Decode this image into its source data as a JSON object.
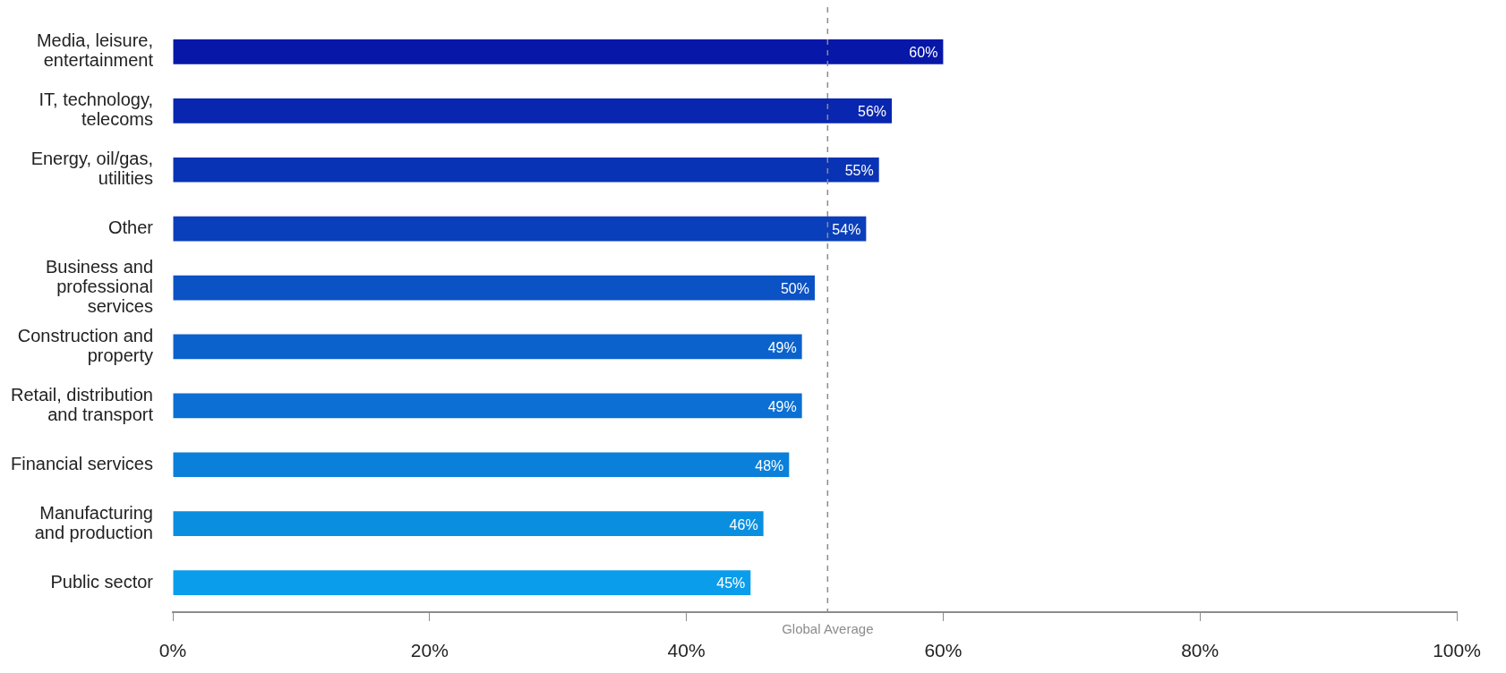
{
  "chart_data": {
    "type": "bar",
    "orientation": "horizontal",
    "categories": [
      "Media, leisure, entertainment",
      "IT, technology, telecoms",
      "Energy, oil/gas, utilities",
      "Other",
      "Business and professional services",
      "Construction and property",
      "Retail, distribution and transport",
      "Financial services",
      "Manufacturing and production",
      "Public sector"
    ],
    "values": [
      60,
      56,
      55,
      54,
      50,
      49,
      49,
      48,
      46,
      45
    ],
    "value_labels": [
      "60%",
      "56%",
      "55%",
      "54%",
      "50%",
      "49%",
      "49%",
      "48%",
      "46%",
      "45%"
    ],
    "colors": [
      "#0717a8",
      "#0826b0",
      "#0933b5",
      "#0a3fbb",
      "#0b52c4",
      "#0b62cc",
      "#0b6fd3",
      "#0a80da",
      "#0a8fe0",
      "#0a9deb"
    ],
    "xlim": [
      0,
      100
    ],
    "xticks": [
      {
        "value": 0,
        "label": "0%"
      },
      {
        "value": 20,
        "label": "20%"
      },
      {
        "value": 40,
        "label": "40%"
      },
      {
        "value": 60,
        "label": "60%"
      },
      {
        "value": 80,
        "label": "80%"
      },
      {
        "value": 100,
        "label": "100%"
      }
    ],
    "ref_lines": [
      {
        "axis": "x",
        "value": 51,
        "label": "Global Average",
        "color": "#8c8c8c",
        "line_style": "dashed"
      }
    ],
    "grid": false,
    "legend": false
  }
}
